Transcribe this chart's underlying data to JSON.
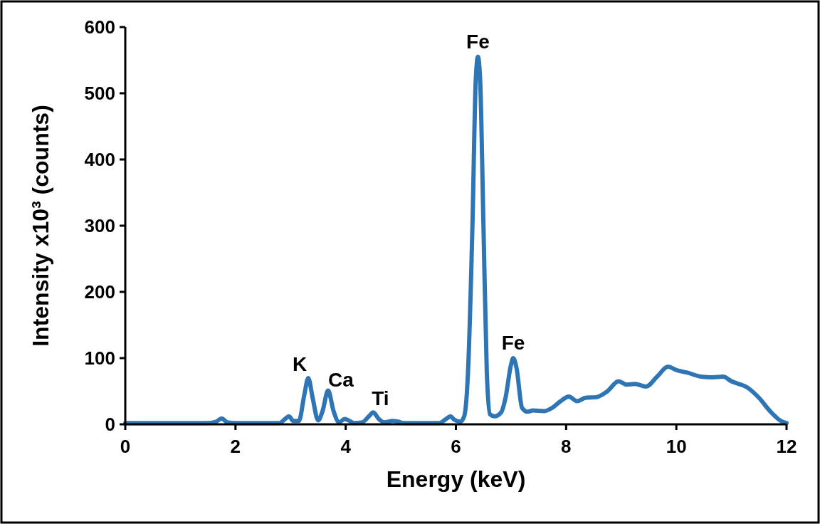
{
  "chart_data": {
    "type": "line",
    "xlabel": "Energy (keV)",
    "ylabel": "Intensity x10³ (counts)",
    "xlim": [
      0,
      12
    ],
    "xticks": [
      0,
      2,
      4,
      6,
      8,
      10,
      12
    ],
    "ylim": [
      0,
      600
    ],
    "yticks": [
      0,
      100,
      200,
      300,
      400,
      500,
      600
    ],
    "grid": false,
    "marker": "none",
    "line_style": "solid",
    "series": [
      {
        "color": "#2e75b6",
        "x": [
          0,
          1.5,
          1.65,
          1.75,
          1.85,
          2.0,
          2.8,
          2.9,
          2.97,
          3.05,
          3.15,
          3.25,
          3.32,
          3.4,
          3.5,
          3.58,
          3.68,
          3.78,
          3.88,
          3.98,
          4.05,
          4.15,
          4.3,
          4.42,
          4.5,
          4.6,
          4.7,
          4.85,
          4.95,
          5.05,
          5.7,
          5.82,
          5.9,
          5.97,
          6.08,
          6.15,
          6.22,
          6.3,
          6.36,
          6.4,
          6.44,
          6.5,
          6.56,
          6.62,
          6.7,
          6.82,
          6.9,
          7.0,
          7.04,
          7.1,
          7.2,
          7.3,
          7.4,
          7.6,
          7.75,
          7.9,
          8.05,
          8.2,
          8.35,
          8.55,
          8.75,
          8.95,
          9.1,
          9.25,
          9.45,
          9.65,
          9.85,
          10.0,
          10.2,
          10.45,
          10.65,
          10.85,
          11.0,
          11.3,
          11.5,
          11.7,
          11.9,
          12.0
        ],
        "values": [
          2,
          2,
          4,
          9,
          3,
          2,
          2,
          8,
          12,
          5,
          5,
          45,
          70,
          40,
          6,
          20,
          51,
          20,
          3,
          8,
          6,
          2,
          3,
          12,
          18,
          8,
          3,
          5,
          4,
          2,
          2,
          8,
          12,
          7,
          4,
          12,
          80,
          300,
          520,
          555,
          520,
          300,
          80,
          15,
          12,
          18,
          40,
          90,
          100,
          85,
          25,
          19,
          21,
          20,
          25,
          35,
          42,
          35,
          40,
          41,
          50,
          65,
          60,
          61,
          57,
          72,
          87,
          82,
          78,
          72,
          71,
          72,
          65,
          55,
          40,
          20,
          5,
          2
        ]
      }
    ],
    "annotations": [
      {
        "text": "K",
        "x": 3.32,
        "y": 70
      },
      {
        "text": "Ca",
        "x": 3.68,
        "y": 51
      },
      {
        "text": "Ti",
        "x": 4.5,
        "y": 18
      },
      {
        "text": "Fe",
        "x": 6.4,
        "y": 555
      },
      {
        "text": "Fe",
        "x": 7.04,
        "y": 100
      }
    ]
  }
}
